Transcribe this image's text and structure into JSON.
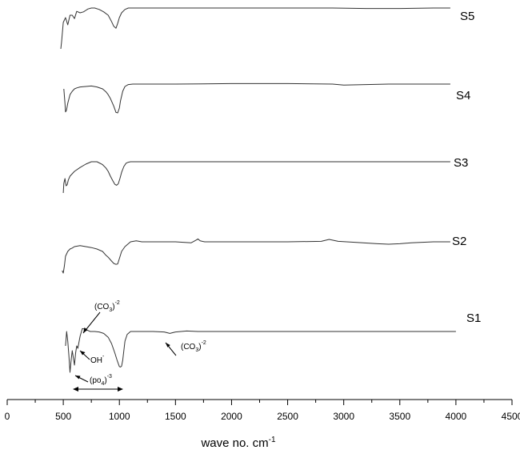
{
  "chart_data": {
    "type": "line",
    "xlabel": "wave no. cm",
    "xlabel_sup": "-1",
    "xlim": [
      0,
      4500
    ],
    "xticks": [
      0,
      500,
      1000,
      1500,
      2000,
      2500,
      3000,
      3500,
      4000,
      4500
    ],
    "grid": false,
    "y_axis": "none",
    "series": [
      {
        "name": "S5",
        "x": [
          478,
          485,
          500,
          520,
          540,
          560,
          580,
          600,
          620,
          650,
          680,
          700,
          720,
          750,
          780,
          820,
          860,
          900,
          930,
          950,
          970,
          985,
          1000,
          1020,
          1050,
          1080,
          1120,
          1200,
          1300,
          1500,
          1700,
          2000,
          2300,
          2600,
          2900,
          3200,
          3500,
          3800,
          3950
        ],
        "y": [
          -8.5,
          -7,
          -3,
          -2,
          -3.5,
          -1.5,
          -1.5,
          -2.2,
          -0.7,
          -1,
          -0.8,
          -0.5,
          -0.2,
          0,
          0,
          -0.3,
          -0.8,
          -1.5,
          -2.8,
          -3.8,
          -4.2,
          -3.2,
          -2,
          -1,
          -0.3,
          0,
          0,
          0,
          0,
          0,
          0,
          0,
          0,
          0,
          0,
          -0.1,
          -0.1,
          0,
          0
        ]
      },
      {
        "name": "S4",
        "x": [
          505,
          510,
          515,
          520,
          528,
          540,
          560,
          580,
          600,
          620,
          650,
          700,
          750,
          800,
          850,
          880,
          900,
          920,
          950,
          970,
          985,
          1000,
          1010,
          1030,
          1050,
          1080,
          1120,
          1200,
          1500,
          2000,
          2500,
          2900,
          3000,
          3200,
          3400,
          3600,
          3800,
          3950
        ],
        "y": [
          -1,
          -2.5,
          -4,
          -5.8,
          -5.5,
          -4,
          -2.2,
          -1.5,
          -1,
          -0.8,
          -0.6,
          -0.5,
          -0.4,
          -0.6,
          -1,
          -1.6,
          -2.2,
          -3,
          -4.6,
          -5.9,
          -6,
          -5,
          -3.5,
          -1.5,
          -0.5,
          -0.1,
          0,
          0,
          0,
          0.1,
          0.1,
          0,
          -0.2,
          -0.1,
          0,
          0,
          0,
          0
        ]
      },
      {
        "name": "S3",
        "x": [
          500,
          505,
          515,
          525,
          535,
          545,
          560,
          580,
          600,
          650,
          700,
          750,
          800,
          850,
          880,
          900,
          920,
          940,
          960,
          975,
          990,
          1005,
          1020,
          1040,
          1060,
          1080,
          1100,
          1200,
          1500,
          2000,
          2500,
          3000,
          3500,
          3950
        ],
        "y": [
          -6.5,
          -4.5,
          -3.5,
          -5,
          -4.8,
          -3.8,
          -3,
          -2.5,
          -2,
          -1.2,
          -0.5,
          0,
          0,
          -0.6,
          -1.3,
          -2,
          -3,
          -3.9,
          -4.7,
          -4.9,
          -4.6,
          -3.5,
          -2.2,
          -1,
          -0.3,
          -0.1,
          0,
          0,
          0,
          0,
          0,
          0,
          0,
          0
        ]
      },
      {
        "name": "S2",
        "x": [
          490,
          500,
          510,
          520,
          540,
          560,
          580,
          600,
          650,
          700,
          750,
          800,
          850,
          880,
          900,
          930,
          950,
          970,
          985,
          1000,
          1020,
          1050,
          1100,
          1150,
          1200,
          1300,
          1500,
          1640,
          1680,
          1700,
          1720,
          1760,
          2000,
          2500,
          2800,
          2870,
          2950,
          3100,
          3300,
          3400,
          3500,
          3600,
          3800,
          3950
        ],
        "y": [
          -6,
          -6.5,
          -5,
          -3,
          -2,
          -1.5,
          -1.3,
          -1,
          -0.8,
          -1,
          -1.2,
          -1.5,
          -2,
          -2.8,
          -3.2,
          -4,
          -4.5,
          -4.7,
          -4.6,
          -3.5,
          -2,
          -1,
          0,
          0.2,
          0,
          0,
          0,
          -0.2,
          0.3,
          0.6,
          0.2,
          0,
          0,
          0,
          0.1,
          0.5,
          0.1,
          -0.1,
          -0.4,
          -0.5,
          -0.4,
          -0.2,
          0,
          0
        ]
      },
      {
        "name": "S1",
        "x": [
          520,
          530,
          540,
          550,
          560,
          570,
          580,
          590,
          600,
          610,
          620,
          630,
          650,
          670,
          690,
          710,
          740,
          780,
          820,
          860,
          900,
          930,
          960,
          980,
          1000,
          1010,
          1020,
          1030,
          1040,
          1050,
          1070,
          1100,
          1150,
          1200,
          1300,
          1400,
          1450,
          1500,
          1600,
          1700,
          2000,
          2500,
          3000,
          3500,
          4000
        ],
        "y": [
          -3,
          0,
          -2,
          -5,
          -8.5,
          -6,
          -4,
          -5.5,
          -7,
          -4.5,
          -3,
          -3.5,
          -1,
          0.6,
          0.5,
          0.3,
          0,
          0,
          -0.1,
          -0.4,
          -1.2,
          -2.5,
          -4.5,
          -6,
          -7.3,
          -7.4,
          -7.2,
          -6,
          -4,
          -2,
          -0.6,
          0,
          0,
          0,
          0,
          -0.1,
          -0.4,
          -0.1,
          0.1,
          0,
          0,
          0,
          0,
          0,
          0
        ]
      }
    ],
    "annotations": [
      {
        "label": "(CO",
        "sub": "3",
        "post": ")",
        "sup": "-2"
      },
      {
        "label": "OH",
        "sup": "-"
      },
      {
        "label": "(po",
        "sub": "4",
        "post": ")",
        "sup": "-3"
      },
      {
        "label": "(CO",
        "sub": "3",
        "post": ")",
        "sup": "-2"
      }
    ]
  }
}
